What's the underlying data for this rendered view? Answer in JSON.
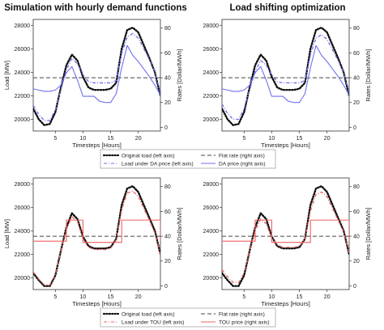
{
  "titles": {
    "left": "Simulation with hourly demand functions",
    "right": "Load shifting optimization"
  },
  "colors": {
    "original": "#111111",
    "flat": "#444444",
    "da": "#6f6ff0",
    "tou": "#f06060"
  },
  "legends": {
    "top": [
      {
        "key": "original",
        "label": "Original load (left axis)",
        "style": "dotted"
      },
      {
        "key": "flat",
        "label": "Flat rate (right axis)",
        "style": "dashed"
      },
      {
        "key": "shifted",
        "label": "Load under DA price (left axis)",
        "style": "dash-dot"
      },
      {
        "key": "price",
        "label": "DA price (right axis)",
        "style": "solid"
      }
    ],
    "bottom": [
      {
        "key": "original",
        "label": "Original load (left axis)",
        "style": "dotted"
      },
      {
        "key": "flat",
        "label": "Flat rate (right axis)",
        "style": "dashed"
      },
      {
        "key": "shifted",
        "label": "Load under TOU (left axis)",
        "style": "dash-dot"
      },
      {
        "key": "price",
        "label": "TOU price (right axis)",
        "style": "solid"
      }
    ]
  },
  "chart_data": [
    {
      "id": "top-left",
      "type": "line",
      "xlabel": "Timesteps [Hours]",
      "ylabel": "Load [MW]",
      "y2label": "Rates [Dollar/MWh]",
      "xlim": [
        1,
        24
      ],
      "ylim": [
        19000,
        28500
      ],
      "y2lim": [
        -3,
        87
      ],
      "xticks": [
        5,
        10,
        15,
        20
      ],
      "yticks": [
        20000,
        22000,
        24000,
        26000,
        28000
      ],
      "y2ticks": [
        0,
        20,
        40,
        60,
        80
      ],
      "x": [
        1,
        2,
        3,
        4,
        5,
        6,
        7,
        8,
        9,
        10,
        11,
        12,
        13,
        14,
        15,
        16,
        17,
        18,
        19,
        20,
        21,
        22,
        23,
        24
      ],
      "series": [
        {
          "name": "Original load (left axis)",
          "axis": "left",
          "color": "original",
          "style": "dotted",
          "values": [
            20900,
            20000,
            19500,
            19600,
            20600,
            22700,
            24600,
            25500,
            25000,
            23600,
            22700,
            22500,
            22500,
            22500,
            22600,
            23100,
            26000,
            27600,
            27800,
            27400,
            26300,
            25200,
            24000,
            22000
          ]
        },
        {
          "name": "Load under DA price (left axis)",
          "axis": "left",
          "color": "da",
          "style": "dash-dot",
          "values": [
            21200,
            20400,
            19900,
            19900,
            20800,
            22500,
            24200,
            25200,
            24700,
            23800,
            23200,
            23100,
            23100,
            23100,
            23100,
            23300,
            25600,
            27000,
            27300,
            26900,
            26000,
            25100,
            24000,
            22300
          ]
        },
        {
          "name": "Flat rate (right axis)",
          "axis": "right",
          "color": "flat",
          "style": "dashed",
          "values": [
            40,
            40,
            40,
            40,
            40,
            40,
            40,
            40,
            40,
            40,
            40,
            40,
            40,
            40,
            40,
            40,
            40,
            40,
            40,
            40,
            40,
            40,
            40,
            40
          ]
        },
        {
          "name": "DA price (right axis)",
          "axis": "right",
          "color": "da",
          "style": "solid",
          "values": [
            31,
            30,
            29,
            29,
            30,
            34,
            44,
            49,
            38,
            25,
            25,
            25,
            21,
            20,
            20,
            27,
            48,
            66,
            58,
            53,
            47,
            41,
            34,
            26
          ]
        }
      ]
    },
    {
      "id": "top-right",
      "type": "line",
      "xlabel": "Timesteps [Hours]",
      "ylabel": "",
      "y2label": "Rates [Dollar/MWh]",
      "xlim": [
        1,
        24
      ],
      "ylim": [
        19000,
        28500
      ],
      "y2lim": [
        -3,
        87
      ],
      "xticks": [
        5,
        10,
        15,
        20
      ],
      "yticks": [
        20000,
        22000,
        24000,
        26000,
        28000
      ],
      "y2ticks": [
        0,
        20,
        40,
        60,
        80
      ],
      "x": [
        1,
        2,
        3,
        4,
        5,
        6,
        7,
        8,
        9,
        10,
        11,
        12,
        13,
        14,
        15,
        16,
        17,
        18,
        19,
        20,
        21,
        22,
        23,
        24
      ],
      "series": [
        {
          "name": "Original load (left axis)",
          "axis": "left",
          "color": "original",
          "style": "dotted",
          "values": [
            20900,
            20000,
            19500,
            19600,
            20600,
            22700,
            24600,
            25500,
            25000,
            23600,
            22700,
            22500,
            22500,
            22500,
            22600,
            23100,
            26000,
            27600,
            27800,
            27400,
            26300,
            25200,
            24000,
            22000
          ]
        },
        {
          "name": "Load under DA price (left axis)",
          "axis": "left",
          "color": "da",
          "style": "dash-dot",
          "values": [
            21300,
            20500,
            20000,
            20000,
            20900,
            22500,
            24100,
            25000,
            24600,
            23800,
            23200,
            23100,
            23100,
            23100,
            23100,
            23300,
            25500,
            26900,
            27200,
            26800,
            25900,
            25000,
            24000,
            22300
          ]
        },
        {
          "name": "Flat rate (right axis)",
          "axis": "right",
          "color": "flat",
          "style": "dashed",
          "values": [
            40,
            40,
            40,
            40,
            40,
            40,
            40,
            40,
            40,
            40,
            40,
            40,
            40,
            40,
            40,
            40,
            40,
            40,
            40,
            40,
            40,
            40,
            40,
            40
          ]
        },
        {
          "name": "DA price (right axis)",
          "axis": "right",
          "color": "da",
          "style": "solid",
          "values": [
            31,
            30,
            29,
            29,
            30,
            34,
            44,
            49,
            38,
            25,
            25,
            25,
            21,
            20,
            20,
            27,
            48,
            66,
            58,
            53,
            47,
            41,
            34,
            26
          ]
        }
      ]
    },
    {
      "id": "bottom-left",
      "type": "line",
      "xlabel": "Timesteps [Hours]",
      "ylabel": "Load [MW]",
      "y2label": "Rates [Dollar/MWh]",
      "xlim": [
        1,
        24
      ],
      "ylim": [
        19000,
        28500
      ],
      "y2lim": [
        -3,
        87
      ],
      "xticks": [
        5,
        10,
        15,
        20
      ],
      "yticks": [
        20000,
        22000,
        24000,
        26000,
        28000
      ],
      "y2ticks": [
        0,
        20,
        40,
        60,
        80
      ],
      "x": [
        1,
        2,
        3,
        4,
        5,
        6,
        7,
        8,
        9,
        10,
        11,
        12,
        13,
        14,
        15,
        16,
        17,
        18,
        19,
        20,
        21,
        22,
        23,
        24
      ],
      "series": [
        {
          "name": "Original load (left axis)",
          "axis": "left",
          "color": "original",
          "style": "dotted",
          "values": [
            20400,
            19800,
            19300,
            19300,
            20200,
            22300,
            24300,
            25500,
            25000,
            23500,
            22700,
            22500,
            22500,
            22500,
            22600,
            23300,
            26200,
            27600,
            27800,
            27300,
            26200,
            25100,
            24000,
            22000
          ]
        },
        {
          "name": "Load under TOU (left axis)",
          "axis": "left",
          "color": "tou",
          "style": "dash-dot",
          "values": [
            20500,
            19900,
            19400,
            19400,
            20300,
            22300,
            24100,
            25200,
            24800,
            23300,
            22600,
            22400,
            22400,
            22400,
            22500,
            23200,
            25800,
            27200,
            27400,
            26900,
            25900,
            24900,
            23800,
            21900
          ]
        },
        {
          "name": "Flat rate (right axis)",
          "axis": "right",
          "color": "flat",
          "style": "dashed",
          "values": [
            40,
            40,
            40,
            40,
            40,
            40,
            40,
            40,
            40,
            40,
            40,
            40,
            40,
            40,
            40,
            40,
            40,
            40,
            40,
            40,
            40,
            40,
            40,
            40
          ]
        },
        {
          "name": "TOU price (right axis)",
          "axis": "right",
          "color": "tou",
          "style": "step",
          "values": [
            36,
            36,
            36,
            36,
            36,
            36,
            53,
            53,
            53,
            35,
            35,
            35,
            35,
            35,
            35,
            35,
            53,
            53,
            53,
            53,
            53,
            53,
            53,
            36
          ]
        }
      ]
    },
    {
      "id": "bottom-right",
      "type": "line",
      "xlabel": "Timesteps [Hours]",
      "ylabel": "",
      "y2label": "Rates [Dollar/MWh]",
      "xlim": [
        1,
        24
      ],
      "ylim": [
        19000,
        28500
      ],
      "y2lim": [
        -3,
        87
      ],
      "xticks": [
        5,
        10,
        15,
        20
      ],
      "yticks": [
        20000,
        22000,
        24000,
        26000,
        28000
      ],
      "y2ticks": [
        0,
        20,
        40,
        60,
        80
      ],
      "x": [
        1,
        2,
        3,
        4,
        5,
        6,
        7,
        8,
        9,
        10,
        11,
        12,
        13,
        14,
        15,
        16,
        17,
        18,
        19,
        20,
        21,
        22,
        23,
        24
      ],
      "series": [
        {
          "name": "Original load (left axis)",
          "axis": "left",
          "color": "original",
          "style": "dotted",
          "values": [
            20400,
            19800,
            19300,
            19300,
            20200,
            22300,
            24300,
            25500,
            25000,
            23500,
            22700,
            22500,
            22500,
            22500,
            22600,
            23300,
            26200,
            27600,
            27800,
            27300,
            26200,
            25100,
            24000,
            22000
          ]
        },
        {
          "name": "Load under TOU (left axis)",
          "axis": "left",
          "color": "tou",
          "style": "dash-dot",
          "values": [
            20700,
            20100,
            19600,
            19600,
            20400,
            22300,
            24000,
            25000,
            24600,
            23400,
            22800,
            22600,
            22600,
            22600,
            22700,
            23300,
            25700,
            27100,
            27300,
            26900,
            25900,
            24900,
            23900,
            22100
          ]
        },
        {
          "name": "Flat rate (right axis)",
          "axis": "right",
          "color": "flat",
          "style": "dashed",
          "values": [
            40,
            40,
            40,
            40,
            40,
            40,
            40,
            40,
            40,
            40,
            40,
            40,
            40,
            40,
            40,
            40,
            40,
            40,
            40,
            40,
            40,
            40,
            40,
            40
          ]
        },
        {
          "name": "TOU price (right axis)",
          "axis": "right",
          "color": "tou",
          "style": "step",
          "values": [
            36,
            36,
            36,
            36,
            36,
            36,
            53,
            53,
            53,
            35,
            35,
            35,
            35,
            35,
            35,
            35,
            53,
            53,
            53,
            53,
            53,
            53,
            53,
            36
          ]
        }
      ]
    }
  ]
}
